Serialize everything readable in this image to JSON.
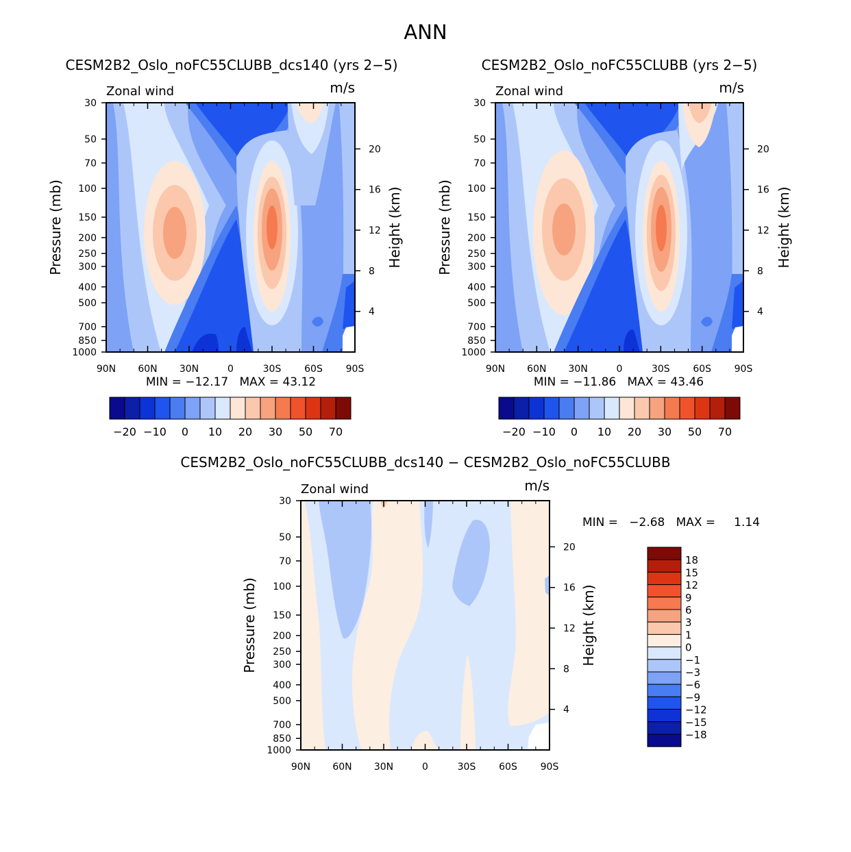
{
  "figure_title": "ANN",
  "colors": {
    "panel_scale": [
      "#0a0a8c",
      "#0b1fa8",
      "#0d33d6",
      "#1f55ee",
      "#4a7cf2",
      "#7da2f6",
      "#adc6fa",
      "#d9e8fd",
      "#fde6d6",
      "#fbc8ad",
      "#f7a380",
      "#f57a4f",
      "#f0522c",
      "#dd3514",
      "#b41f0b",
      "#7d0a06"
    ],
    "diff_scale": [
      "#0a0a8c",
      "#0b1fa8",
      "#0d33d6",
      "#1f55ee",
      "#4a7cf2",
      "#7da2f6",
      "#adc6fa",
      "#d9e8fd",
      "#fdeee2",
      "#fbc8ad",
      "#f7a380",
      "#f57a4f",
      "#f0522c",
      "#dd3514",
      "#b41f0b",
      "#7d0a06"
    ]
  },
  "chart_data": [
    {
      "type": "contour",
      "id": "panel1",
      "title": "CESM2B2_Oslo_noFC55CLUBB_dcs140 (yrs 2−5)",
      "left_label": "Zonal wind",
      "right_label": "m/s",
      "ylabel": "Pressure (mb)",
      "y2label": "Height (km)",
      "x_ticks": [
        "90N",
        "60N",
        "30N",
        "0",
        "30S",
        "60S",
        "90S"
      ],
      "x_range": [
        90,
        -90
      ],
      "y_ticks": [
        30,
        50,
        70,
        100,
        150,
        200,
        250,
        300,
        400,
        500,
        700,
        850,
        1000
      ],
      "y_range": [
        30,
        1000
      ],
      "y2_ticks": [
        20,
        16,
        12,
        8,
        4
      ],
      "stats": "MIN = −12.17   MAX = 43.12",
      "min": -12.17,
      "max": 43.12,
      "colorbar_labels": [
        "−20",
        "−10",
        "0",
        "10",
        "20",
        "30",
        "50",
        "70"
      ]
    },
    {
      "type": "contour",
      "id": "panel2",
      "title": "CESM2B2_Oslo_noFC55CLUBB (yrs 2−5)",
      "left_label": "Zonal wind",
      "right_label": "m/s",
      "ylabel": "Pressure (mb)",
      "y2label": "Height (km)",
      "x_ticks": [
        "90N",
        "60N",
        "30N",
        "0",
        "30S",
        "60S",
        "90S"
      ],
      "x_range": [
        90,
        -90
      ],
      "y_ticks": [
        30,
        50,
        70,
        100,
        150,
        200,
        250,
        300,
        400,
        500,
        700,
        850,
        1000
      ],
      "y_range": [
        30,
        1000
      ],
      "y2_ticks": [
        20,
        16,
        12,
        8,
        4
      ],
      "stats": "MIN = −11.86   MAX = 43.46",
      "min": -11.86,
      "max": 43.46,
      "colorbar_labels": [
        "−20",
        "−10",
        "0",
        "10",
        "20",
        "30",
        "50",
        "70"
      ]
    },
    {
      "type": "contour",
      "id": "diff",
      "title": "CESM2B2_Oslo_noFC55CLUBB_dcs140 − CESM2B2_Oslo_noFC55CLUBB",
      "left_label": "Zonal wind",
      "right_label": "m/s",
      "ylabel": "Pressure (mb)",
      "y2label": "Height (km)",
      "x_ticks": [
        "90N",
        "60N",
        "30N",
        "0",
        "30S",
        "60S",
        "90S"
      ],
      "x_range": [
        90,
        -90
      ],
      "y_ticks": [
        30,
        50,
        70,
        100,
        150,
        200,
        250,
        300,
        400,
        500,
        700,
        850,
        1000
      ],
      "y_range": [
        30,
        1000
      ],
      "y2_ticks": [
        20,
        16,
        12,
        8,
        4
      ],
      "stats": "MIN =   −2.68   MAX =     1.14",
      "min": -2.68,
      "max": 1.14,
      "colorbar_labels": [
        "18",
        "15",
        "12",
        "9",
        "6",
        "3",
        "1",
        "0",
        "−1",
        "−3",
        "−6",
        "−9",
        "−12",
        "−15",
        "−18"
      ]
    }
  ]
}
